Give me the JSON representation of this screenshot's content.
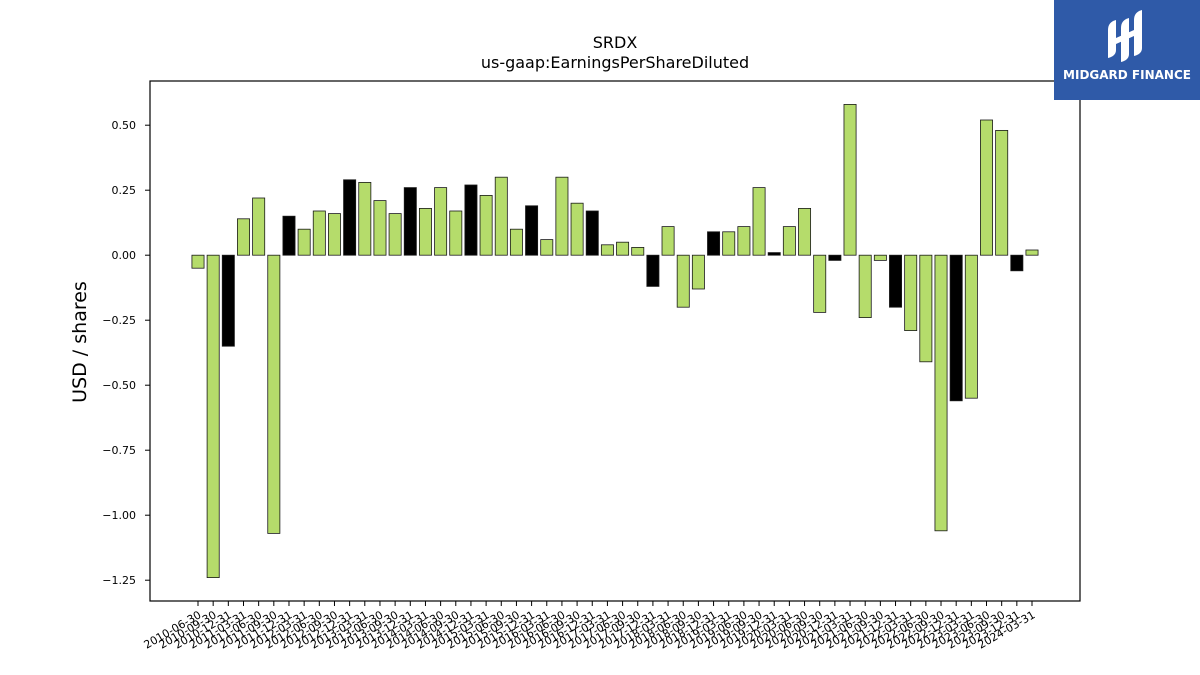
{
  "chart_data": {
    "type": "bar",
    "title": "SRDX",
    "subtitle": "us-gaap:EarningsPerShareDiluted",
    "xlabel": "",
    "ylabel": "USD / shares",
    "ylim": [
      -1.33,
      0.67
    ],
    "yticks": [
      0.5,
      0.25,
      0.0,
      -0.25,
      -0.5,
      -0.75,
      -1.0,
      -1.25
    ],
    "ytick_labels": [
      "0.50",
      "0.25",
      "0.00",
      "−0.25",
      "−0.50",
      "−0.75",
      "−1.00",
      "−1.25"
    ],
    "grid": false,
    "colors": {
      "quarter": "#b5dc6b",
      "annual": "#000000",
      "edge": "#1a1a1a"
    },
    "bars": [
      {
        "label": "2010-06-30",
        "value": -0.05,
        "kind": "quarter"
      },
      {
        "label": "2010-09-30",
        "value": -1.24,
        "kind": "quarter"
      },
      {
        "label": "2010-12-31",
        "value": -0.35,
        "kind": "annual"
      },
      {
        "label": "2011-03-31",
        "value": 0.14,
        "kind": "quarter"
      },
      {
        "label": "2011-06-30",
        "value": 0.22,
        "kind": "quarter"
      },
      {
        "label": "2011-09-30",
        "value": -1.07,
        "kind": "quarter"
      },
      {
        "label": "2011-12-31",
        "value": 0.15,
        "kind": "annual"
      },
      {
        "label": "2012-03-31",
        "value": 0.1,
        "kind": "quarter"
      },
      {
        "label": "2012-06-30",
        "value": 0.17,
        "kind": "quarter"
      },
      {
        "label": "2012-09-30",
        "value": 0.16,
        "kind": "quarter"
      },
      {
        "label": "2012-12-31",
        "value": 0.29,
        "kind": "annual"
      },
      {
        "label": "2013-03-31",
        "value": 0.28,
        "kind": "quarter"
      },
      {
        "label": "2013-06-30",
        "value": 0.21,
        "kind": "quarter"
      },
      {
        "label": "2013-09-30",
        "value": 0.16,
        "kind": "quarter"
      },
      {
        "label": "2013-12-31",
        "value": 0.26,
        "kind": "annual"
      },
      {
        "label": "2014-03-31",
        "value": 0.18,
        "kind": "quarter"
      },
      {
        "label": "2014-06-30",
        "value": 0.26,
        "kind": "quarter"
      },
      {
        "label": "2014-09-30",
        "value": 0.17,
        "kind": "quarter"
      },
      {
        "label": "2014-12-31",
        "value": 0.27,
        "kind": "annual"
      },
      {
        "label": "2015-03-31",
        "value": 0.23,
        "kind": "quarter"
      },
      {
        "label": "2015-06-30",
        "value": 0.3,
        "kind": "quarter"
      },
      {
        "label": "2015-09-30",
        "value": 0.1,
        "kind": "quarter"
      },
      {
        "label": "2015-12-31",
        "value": 0.19,
        "kind": "annual"
      },
      {
        "label": "2016-03-31",
        "value": 0.06,
        "kind": "quarter"
      },
      {
        "label": "2016-06-30",
        "value": 0.3,
        "kind": "quarter"
      },
      {
        "label": "2016-09-30",
        "value": 0.2,
        "kind": "quarter"
      },
      {
        "label": "2016-12-31",
        "value": 0.17,
        "kind": "annual"
      },
      {
        "label": "2017-03-31",
        "value": 0.04,
        "kind": "quarter"
      },
      {
        "label": "2017-06-30",
        "value": 0.05,
        "kind": "quarter"
      },
      {
        "label": "2017-09-30",
        "value": 0.03,
        "kind": "quarter"
      },
      {
        "label": "2017-12-31",
        "value": -0.12,
        "kind": "annual"
      },
      {
        "label": "2018-03-31",
        "value": 0.11,
        "kind": "quarter"
      },
      {
        "label": "2018-06-30",
        "value": -0.2,
        "kind": "quarter"
      },
      {
        "label": "2018-09-30",
        "value": -0.13,
        "kind": "quarter"
      },
      {
        "label": "2018-12-31",
        "value": 0.09,
        "kind": "annual"
      },
      {
        "label": "2019-03-31",
        "value": 0.09,
        "kind": "quarter"
      },
      {
        "label": "2019-06-30",
        "value": 0.11,
        "kind": "quarter"
      },
      {
        "label": "2019-09-30",
        "value": 0.26,
        "kind": "quarter"
      },
      {
        "label": "2019-12-31",
        "value": 0.01,
        "kind": "annual"
      },
      {
        "label": "2020-03-31",
        "value": 0.11,
        "kind": "quarter"
      },
      {
        "label": "2020-06-30",
        "value": 0.18,
        "kind": "quarter"
      },
      {
        "label": "2020-09-30",
        "value": -0.22,
        "kind": "quarter"
      },
      {
        "label": "2020-12-31",
        "value": -0.02,
        "kind": "annual"
      },
      {
        "label": "2021-03-31",
        "value": 0.58,
        "kind": "quarter"
      },
      {
        "label": "2021-06-30",
        "value": -0.24,
        "kind": "quarter"
      },
      {
        "label": "2021-09-30",
        "value": -0.02,
        "kind": "quarter"
      },
      {
        "label": "2021-12-31",
        "value": -0.2,
        "kind": "annual"
      },
      {
        "label": "2022-03-31",
        "value": -0.29,
        "kind": "quarter"
      },
      {
        "label": "2022-06-30",
        "value": -0.41,
        "kind": "quarter"
      },
      {
        "label": "2022-09-30",
        "value": -1.06,
        "kind": "quarter"
      },
      {
        "label": "2022-12-31",
        "value": -0.56,
        "kind": "annual"
      },
      {
        "label": "2023-03-31",
        "value": -0.55,
        "kind": "quarter"
      },
      {
        "label": "2023-06-30",
        "value": 0.52,
        "kind": "quarter"
      },
      {
        "label": "2023-09-30",
        "value": 0.48,
        "kind": "quarter"
      },
      {
        "label": "2023-12-31",
        "value": -0.06,
        "kind": "annual"
      },
      {
        "label": "2024-03-31",
        "value": 0.02,
        "kind": "quarter"
      }
    ]
  },
  "logo": {
    "text": "MIDGARD FINANCE",
    "icon": "midgard-logo-icon",
    "bg_color": "#2f5aa8"
  }
}
